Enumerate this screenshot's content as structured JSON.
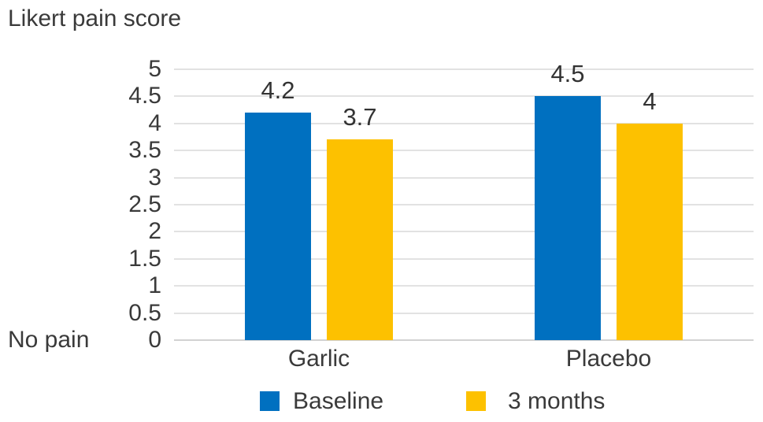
{
  "chart_data": {
    "type": "bar",
    "title": "Likert pain score",
    "categories": [
      "Garlic",
      "Placebo"
    ],
    "series": [
      {
        "name": "Baseline",
        "color": "#0070C0",
        "values": [
          4.2,
          4.5
        ],
        "labels": [
          "4.2",
          "4.5"
        ]
      },
      {
        "name": "3 months",
        "color": "#FDC100",
        "values": [
          3.7,
          4.0
        ],
        "labels": [
          "3.7",
          "4"
        ]
      }
    ],
    "y_axis": {
      "min": 0,
      "max": 5,
      "step": 0.5,
      "tick_labels": [
        "5",
        "4.5",
        "4",
        "3.5",
        "3",
        "2.5",
        "2",
        "1.5",
        "1",
        "0.5",
        "0"
      ],
      "zero_label": "No pain"
    },
    "grid": true,
    "legend_position": "bottom",
    "colors": {
      "baseline": "#0070C0",
      "three_months": "#FDC100",
      "gridline": "#e2e2e2",
      "text": "#3a3a3a"
    }
  }
}
